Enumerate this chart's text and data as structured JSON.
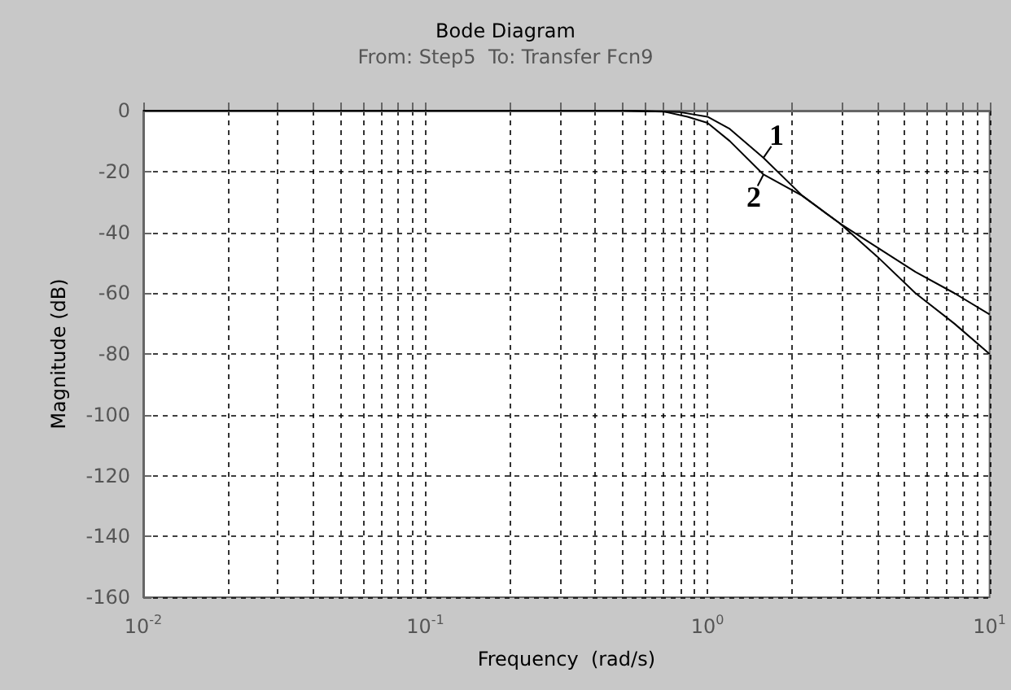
{
  "chart_data": {
    "type": "line",
    "title": "Bode Diagram",
    "subtitle": "From: Step5  To: Transfer Fcn9",
    "xlabel": "Frequency  (rad/s)",
    "ylabel": "Magnitude (dB)",
    "log": "x",
    "grid": true,
    "marker": "none",
    "line_style": "solid",
    "xlim": [
      0.01,
      10
    ],
    "xticks": [
      {
        "value": 0.01,
        "label": "10$^{-2}$"
      },
      {
        "value": 0.1,
        "label": "10$^{-1}$"
      },
      {
        "value": 1,
        "label": "10$^{0}$"
      },
      {
        "value": 10,
        "label": "10$^{1}$"
      }
    ],
    "ylim": [
      -160,
      0
    ],
    "yticks": [
      -160,
      -140,
      -120,
      -100,
      -80,
      -60,
      -40,
      -20,
      0
    ],
    "series": [
      {
        "color": "#000000",
        "x": [
          0.01,
          0.5,
          0.8,
          1,
          1.2,
          1.58,
          2.17,
          2.94,
          4,
          5.46,
          7.5,
          10
        ],
        "values": [
          0,
          0,
          -0.5,
          -2,
          -6,
          -15.5,
          -28,
          -37,
          -45,
          -53,
          -60,
          -67
        ]
      },
      {
        "color": "#000000",
        "x": [
          0.01,
          0.5,
          0.7,
          0.85,
          1,
          1.2,
          1.58,
          2.17,
          2.94,
          4,
          5.46,
          7.5,
          10
        ],
        "values": [
          0,
          0,
          -0.3,
          -2,
          -4,
          -10,
          -21,
          -28,
          -37,
          -48,
          -60,
          -70,
          -80
        ]
      }
    ],
    "annotations": [
      {
        "text": "1",
        "x": 1.58,
        "y": -15.5
      },
      {
        "text": "2",
        "x": 1.58,
        "y": -21
      }
    ]
  }
}
